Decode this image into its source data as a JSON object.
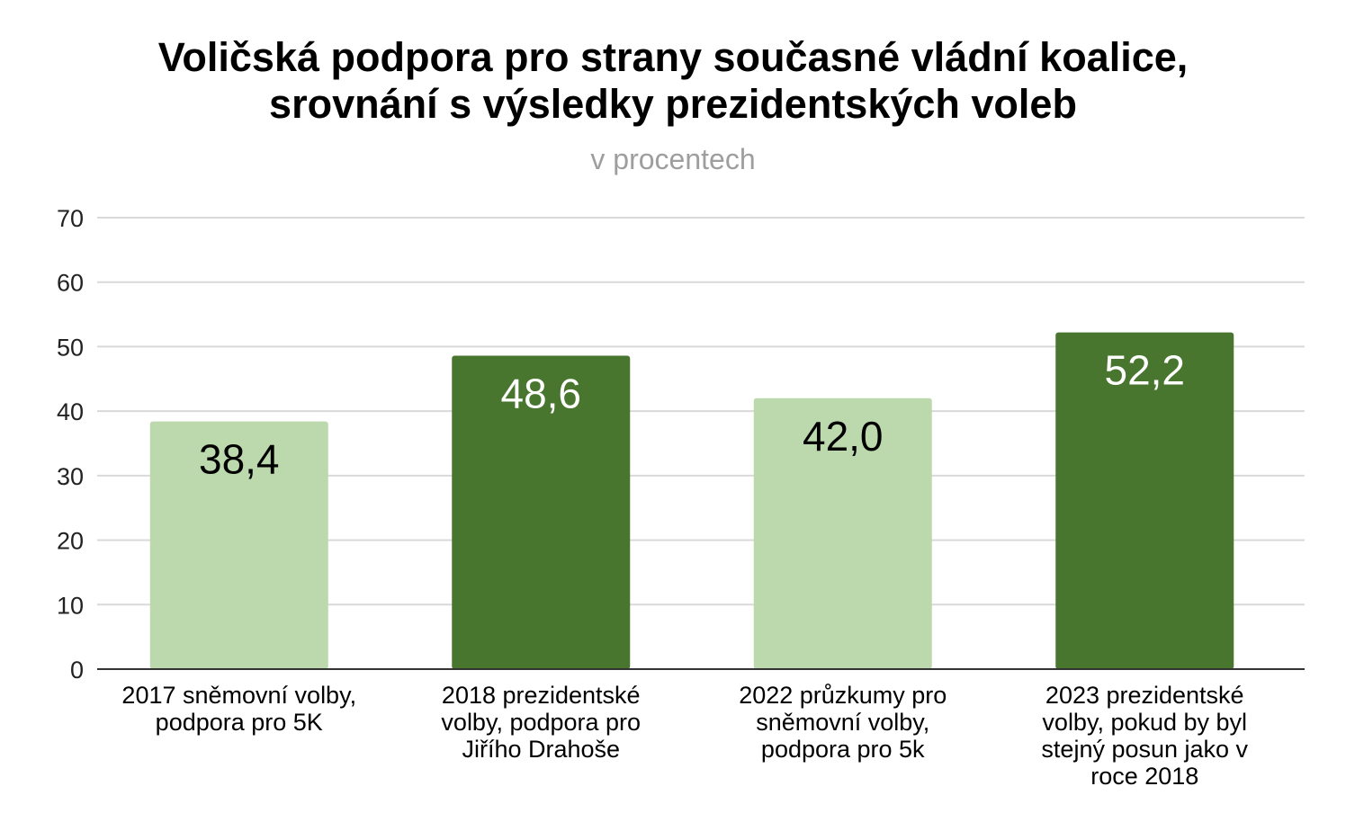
{
  "chart_data": {
    "type": "bar",
    "title_lines": [
      "Voličská podpora pro strany současné vládní koalice,",
      "srovnání s výsledky prezidentských voleb"
    ],
    "subtitle": "v procentech",
    "xlabel": "",
    "ylabel": "",
    "ylim": [
      0,
      70
    ],
    "yticks": [
      "0",
      "10",
      "20",
      "30",
      "40",
      "50",
      "60",
      "70"
    ],
    "grid": true,
    "legend": "none",
    "categories": [
      [
        "2017 sněmovní volby,",
        "podpora pro 5K"
      ],
      [
        "2018 prezidentské",
        "volby, podpora pro",
        "Jiřího Drahoše"
      ],
      [
        "2022 průzkumy pro",
        "sněmovní volby,",
        "podpora pro 5k"
      ],
      [
        "2023 prezidentské",
        "volby, pokud by byl",
        "stejný posun jako v",
        "roce 2018"
      ]
    ],
    "values": [
      38.4,
      48.6,
      42.0,
      52.2
    ],
    "data_labels": [
      "38,4",
      "48,6",
      "42,0",
      "52,2"
    ],
    "bar_colors": [
      "#bcd8ad",
      "#48762e",
      "#bcd8ad",
      "#48762e"
    ],
    "label_colors": [
      "#000000",
      "#ffffff",
      "#000000",
      "#ffffff"
    ],
    "gridline_color": "#d9d9d9",
    "axis_color": "#333333"
  }
}
